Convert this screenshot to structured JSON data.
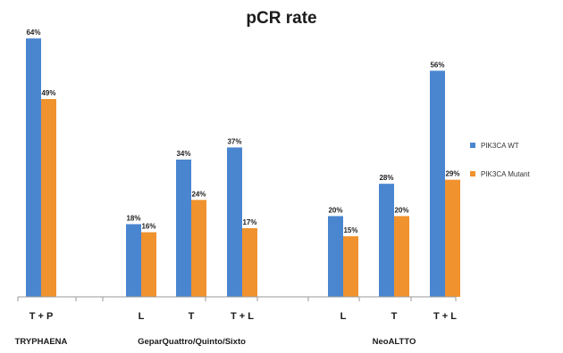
{
  "chart_data": {
    "type": "bar",
    "title": "pCR rate",
    "xlabel": "",
    "ylabel": "",
    "ylim": [
      0,
      68
    ],
    "grid": false,
    "legend": "right",
    "value_suffix": "%",
    "categories": [
      "T + P",
      "L",
      "T",
      "T + L",
      "L",
      "T",
      "T + L"
    ],
    "groups": [
      {
        "label": "TRYPHAENA",
        "categories": [
          0
        ]
      },
      {
        "label": "GeparQuattro/Quinto/Sixto",
        "categories": [
          1,
          2,
          3
        ]
      },
      {
        "label": "NeoALTTO",
        "categories": [
          4,
          5,
          6
        ]
      }
    ],
    "series": [
      {
        "name": "PIK3CA WT",
        "color": "#4a86d0",
        "values": [
          64,
          18,
          34,
          37,
          20,
          28,
          56
        ]
      },
      {
        "name": "PIK3CA Mutant",
        "color": "#f0922e",
        "values": [
          49,
          16,
          24,
          17,
          15,
          20,
          29
        ]
      }
    ]
  }
}
